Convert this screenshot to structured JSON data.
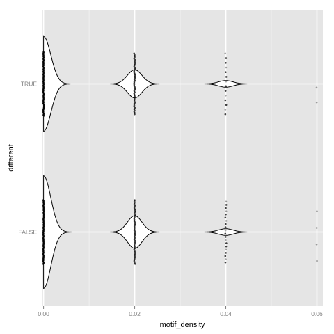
{
  "chart_data": {
    "type": "violin",
    "title": "",
    "xlabel": "motif_density",
    "ylabel": "different",
    "xlim": [
      -0.0004,
      0.0613
    ],
    "x_ticks": [
      0.0,
      0.02,
      0.04,
      0.06
    ],
    "x_tick_labels": [
      "0.00",
      "0.02",
      "0.04",
      "0.06"
    ],
    "x_minor_ticks": [
      0.01,
      0.03,
      0.05
    ],
    "categories": [
      "TRUE",
      "FALSE"
    ],
    "grid": true,
    "legend": "none",
    "colors": {
      "panel_background": "#e5e5e5",
      "grid_major": "#ffffff",
      "grid_minor": "#f2f2f2",
      "violin_fill": "#ffffff",
      "outline": "#000000",
      "points": "#000000"
    },
    "series": [
      {
        "name": "TRUE",
        "density_peaks": [
          {
            "x": 0.0,
            "half_width": 0.64,
            "spread": 0.0016
          },
          {
            "x": 0.02,
            "half_width": 0.19,
            "spread": 0.0016
          },
          {
            "x": 0.04,
            "half_width": 0.045,
            "spread": 0.0016
          }
        ],
        "violin_range": [
          0.0,
          0.06
        ],
        "points": [
          {
            "x": 0.0,
            "offsets": [
              -0.43,
              0.43
            ],
            "count": 90
          },
          {
            "x": 0.02,
            "offsets": [
              -0.41,
              0.41
            ],
            "count": 48
          },
          {
            "x": 0.04,
            "offsets": [
              -0.41,
              0.41
            ],
            "count": 14
          },
          {
            "x": 0.06,
            "offsets": [
              0.05,
              0.25
            ],
            "count": 2
          }
        ]
      },
      {
        "name": "FALSE",
        "density_peaks": [
          {
            "x": 0.0,
            "half_width": 0.76,
            "spread": 0.0016
          },
          {
            "x": 0.02,
            "half_width": 0.22,
            "spread": 0.0016
          },
          {
            "x": 0.04,
            "half_width": 0.045,
            "spread": 0.0016
          }
        ],
        "violin_range": [
          0.0,
          0.06
        ],
        "points": [
          {
            "x": 0.0,
            "offsets": [
              -0.43,
              0.43
            ],
            "count": 90
          },
          {
            "x": 0.02,
            "offsets": [
              -0.43,
              0.43
            ],
            "count": 50
          },
          {
            "x": 0.04,
            "offsets": [
              -0.41,
              0.41
            ],
            "count": 20
          },
          {
            "x": 0.06,
            "offsets": [
              -0.28,
              0.39
            ],
            "count": 4
          }
        ]
      }
    ]
  }
}
